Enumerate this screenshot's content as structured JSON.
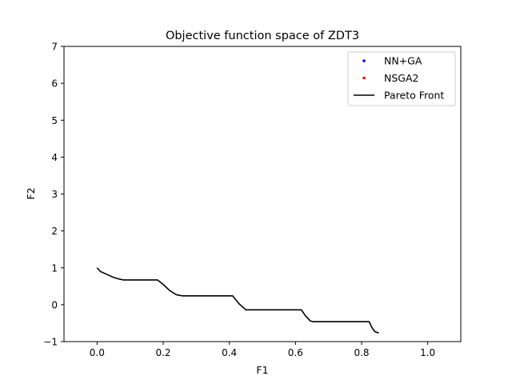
{
  "chart_data": {
    "type": "line",
    "title": "Objective function space of ZDT3",
    "xlabel": "F1",
    "ylabel": "F2",
    "xlim": [
      -0.1,
      1.1
    ],
    "ylim": [
      -1,
      7
    ],
    "xticks": [
      0.0,
      0.2,
      0.4,
      0.6,
      0.8,
      1.0
    ],
    "xtick_labels": [
      "0.0",
      "0.2",
      "0.4",
      "0.6",
      "0.8",
      "1.0"
    ],
    "yticks": [
      -1,
      0,
      1,
      2,
      3,
      4,
      5,
      6,
      7
    ],
    "ytick_labels": [
      "−1",
      "0",
      "1",
      "2",
      "3",
      "4",
      "5",
      "6",
      "7"
    ],
    "grid": false,
    "legend_position": "top-right",
    "colors": {
      "nn_ga": "#0000ff",
      "nsga2": "#ff0000",
      "pareto": "#000000"
    },
    "series": [
      {
        "name": "NN+GA",
        "marker": "dot",
        "x": [],
        "y": []
      },
      {
        "name": "NSGA2",
        "marker": "dot",
        "x": [],
        "y": []
      },
      {
        "name": "Pareto Front",
        "marker": "line",
        "x": [
          0.0,
          0.01,
          0.03,
          0.05,
          0.065,
          0.08,
          0.1,
          0.13,
          0.16,
          0.183,
          0.2,
          0.22,
          0.24,
          0.258,
          0.3,
          0.35,
          0.4,
          0.41,
          0.43,
          0.45,
          0.5,
          0.55,
          0.6,
          0.618,
          0.63,
          0.645,
          0.652,
          0.7,
          0.75,
          0.8,
          0.823,
          0.83,
          0.84,
          0.852
        ],
        "y": [
          1.0,
          0.9,
          0.82,
          0.74,
          0.7,
          0.67,
          0.67,
          0.67,
          0.67,
          0.67,
          0.55,
          0.38,
          0.27,
          0.24,
          0.24,
          0.24,
          0.24,
          0.24,
          0.02,
          -0.14,
          -0.14,
          -0.14,
          -0.14,
          -0.14,
          -0.3,
          -0.44,
          -0.46,
          -0.46,
          -0.46,
          -0.46,
          -0.46,
          -0.6,
          -0.73,
          -0.77
        ]
      }
    ]
  }
}
